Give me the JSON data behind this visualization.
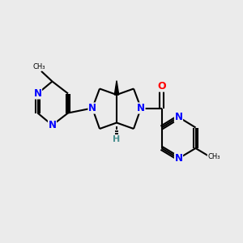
{
  "background_color": "#EBEBEB",
  "bond_color": "#000000",
  "bond_width": 1.5,
  "atom_colors": {
    "N": "#0000FF",
    "O": "#FF0000",
    "H": "#4A9090",
    "C": "#000000"
  },
  "font_size": 8.5,
  "fig_width": 3.0,
  "fig_height": 3.0,
  "dpi": 100
}
